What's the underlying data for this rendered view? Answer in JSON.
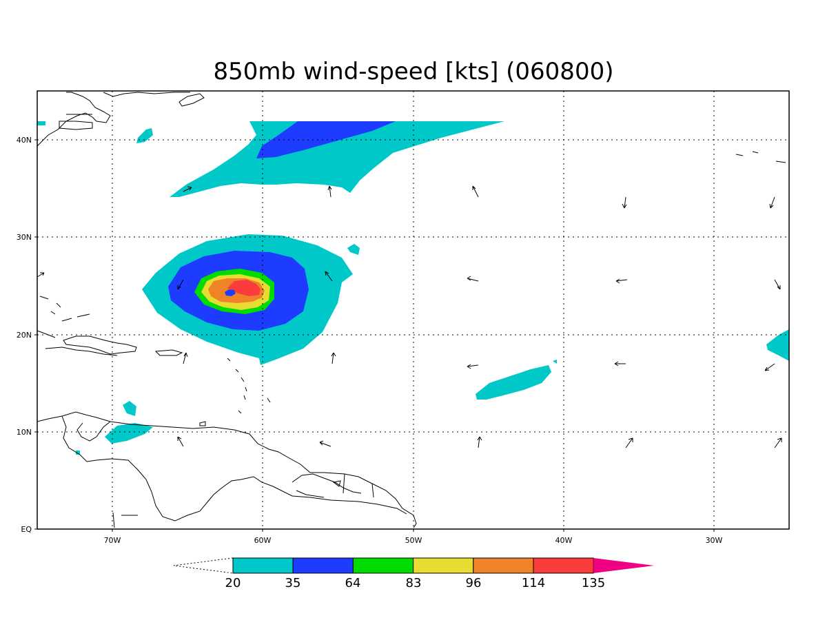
{
  "title": "850mb wind-speed [kts] (060800)",
  "map": {
    "lat_labels": [
      "40N",
      "30N",
      "20N",
      "10N",
      "EQ"
    ],
    "lat_values": [
      40,
      30,
      20,
      10,
      0
    ],
    "lon_labels": [
      "70W",
      "60W",
      "50W",
      "40W",
      "30W"
    ],
    "lon_values": [
      -70,
      -60,
      -50,
      -40,
      -30
    ],
    "lon_range": [
      -75,
      -25
    ],
    "lat_range": [
      0,
      45
    ]
  },
  "colorbar": {
    "levels": [
      "20",
      "35",
      "64",
      "83",
      "96",
      "114",
      "135"
    ],
    "colors": [
      "#00c8c8",
      "#1e3cff",
      "#00dc00",
      "#e6dc32",
      "#f08228",
      "#fa3c3c",
      "#f00082"
    ],
    "under_color": "#ffffff"
  }
}
